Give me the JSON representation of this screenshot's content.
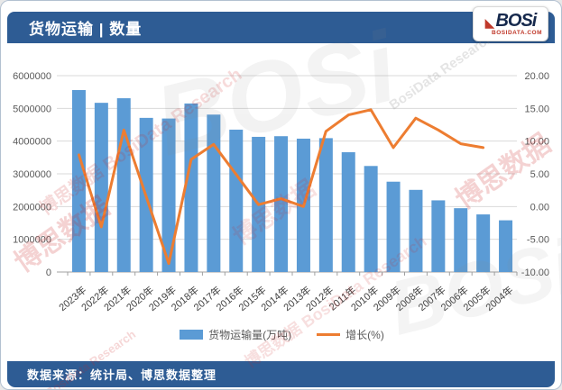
{
  "header": {
    "title": "货物运输 | 数量"
  },
  "logo": {
    "brand": "BOSi",
    "domain": "BOSIDATA.COM",
    "accent_color": "#c0392b"
  },
  "legend": [
    {
      "label": "货物运输量(万吨)",
      "color": "#5B9BD5",
      "type": "bar"
    },
    {
      "label": "增长(%)",
      "color": "#ED7D31",
      "type": "line"
    }
  ],
  "footer": {
    "source": "数据来源：统计局、博思数据整理"
  },
  "watermarks": {
    "cn": "博思数据",
    "en": "BosiData Research",
    "brand": "BOSi",
    "mixed": "博思数据 BosiData Research"
  },
  "colors": {
    "band_blue": "#2e5c94",
    "bar_blue": "#5B9BD5",
    "line_orange": "#ED7D31",
    "grid": "#d9d9d9",
    "axis_text": "#595959",
    "x_label_text": "#404040",
    "axis_line": "#a0a0a0"
  },
  "chart_data": {
    "type": "bar",
    "subtype": "bar+line dual axis",
    "title": "货物运输 | 数量",
    "xlabel": "",
    "ylabel_left": "货物运输量(万吨)",
    "ylabel_right": "增长(%)",
    "grid": true,
    "legend_position": "bottom",
    "categories": [
      "2023年",
      "2022年",
      "2021年",
      "2020年",
      "2019年",
      "2018年",
      "2017年",
      "2016年",
      "2015年",
      "2014年",
      "2013年",
      "2012年",
      "2011年",
      "2010年",
      "2009年",
      "2008年",
      "2007年",
      "2006年",
      "2005年",
      "2004年"
    ],
    "series": [
      {
        "name": "货物运输量(万吨)",
        "type": "bar",
        "axis": "left",
        "color": "#5B9BD5",
        "values": [
          5560000,
          5170000,
          5310000,
          4710000,
          4690000,
          5150000,
          4810000,
          4350000,
          4130000,
          4150000,
          4075000,
          4090000,
          3660000,
          3240000,
          2760000,
          2510000,
          2190000,
          1950000,
          1760000,
          1580000
        ]
      },
      {
        "name": "增长(%)",
        "type": "line",
        "axis": "right",
        "color": "#ED7D31",
        "values": [
          7.9,
          -3.1,
          11.7,
          1.5,
          -8.7,
          7.2,
          9.5,
          4.9,
          0.3,
          1.2,
          0.0,
          11.5,
          14.0,
          14.8,
          9.0,
          13.5,
          11.7,
          9.6,
          9.0,
          null
        ]
      }
    ],
    "left_axis": {
      "min": 0,
      "max": 6000000,
      "step": 1000000,
      "tick_labels": [
        "0",
        "1000000",
        "2000000",
        "3000000",
        "4000000",
        "5000000",
        "6000000"
      ]
    },
    "right_axis": {
      "min": -10,
      "max": 20,
      "step": 5,
      "tick_labels": [
        "-10.00",
        "-5.00",
        "0.00",
        "5.00",
        "10.00",
        "15.00",
        "20.00"
      ]
    }
  }
}
